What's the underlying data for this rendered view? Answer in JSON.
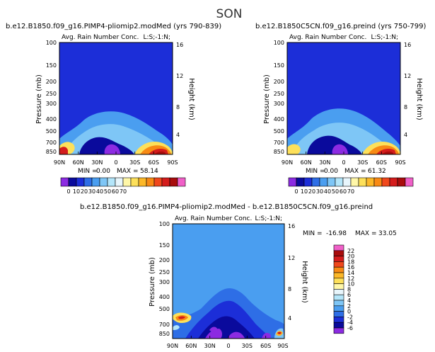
{
  "figure_title": "SON",
  "chart_data": [
    {
      "type": "heatmap",
      "title": "b.e12.B1850.f09_g16.PIMP4-pliomip2.modMed (yrs 790-839)",
      "subtitle": "Avg. Rain Number Conc.",
      "level_label": "L:S;-1:N;",
      "ylabel": "Pressure (mb)",
      "ylabel_right": "Height (km)",
      "xtick_labels": [
        "90N",
        "60N",
        "30N",
        "0",
        "30S",
        "60S",
        "90S"
      ],
      "ytick_labels": [
        "100",
        "150",
        "200",
        "250",
        "300",
        "400",
        "500",
        "700",
        "850"
      ],
      "ytick_right_labels": [
        "16",
        "12",
        "8",
        "4"
      ],
      "stats": {
        "min_label": "MIN =",
        "min": "0.00",
        "max_label": "MAX =",
        "max": "58.14"
      },
      "colorbar": {
        "orientation": "horizontal",
        "labels": [
          "0",
          "10",
          "20",
          "30",
          "40",
          "50",
          "60",
          "70"
        ],
        "colors": [
          "#8c2be2",
          "#0a0a9c",
          "#1c2ed8",
          "#2e6ee6",
          "#4a9ef0",
          "#7ec6f6",
          "#b4e6fa",
          "#e8f6fc",
          "#fff7a8",
          "#fde05a",
          "#fcb828",
          "#f88a14",
          "#f0481c",
          "#d41c1c",
          "#a80c0c",
          "#f060c8"
        ]
      }
    },
    {
      "type": "heatmap",
      "title": "b.e12.B1850C5CN.f09_g16.preind (yrs 750-799)",
      "subtitle": "Avg. Rain Number Conc.",
      "level_label": "L:S;-1:N;",
      "ylabel": "Pressure (mb)",
      "ylabel_right": "Height (km)",
      "xtick_labels": [
        "90N",
        "60N",
        "30N",
        "0",
        "30S",
        "60S",
        "90S"
      ],
      "ytick_labels": [
        "100",
        "150",
        "200",
        "250",
        "300",
        "400",
        "500",
        "700",
        "850"
      ],
      "ytick_right_labels": [
        "16",
        "12",
        "8",
        "4"
      ],
      "stats": {
        "min_label": "MIN =",
        "min": "0.00",
        "max_label": "MAX =",
        "max": "61.32"
      },
      "colorbar": {
        "orientation": "horizontal",
        "labels": [
          "0",
          "10",
          "20",
          "30",
          "40",
          "50",
          "60",
          "70"
        ],
        "colors": [
          "#8c2be2",
          "#0a0a9c",
          "#1c2ed8",
          "#2e6ee6",
          "#4a9ef0",
          "#7ec6f6",
          "#b4e6fa",
          "#e8f6fc",
          "#fff7a8",
          "#fde05a",
          "#fcb828",
          "#f88a14",
          "#f0481c",
          "#d41c1c",
          "#a80c0c",
          "#f060c8"
        ]
      }
    },
    {
      "type": "heatmap",
      "title": "b.e12.B1850.f09_g16.PIMP4-pliomip2.modMed - b.e12.B1850C5CN.f09_g16.preind",
      "subtitle": "Avg. Rain Number Conc.",
      "level_label": "L:S;-1:N;",
      "ylabel": "Pressure (mb)",
      "ylabel_right": "Height (km)",
      "xtick_labels": [
        "90N",
        "60N",
        "30N",
        "0",
        "30S",
        "60S",
        "90S"
      ],
      "ytick_labels": [
        "100",
        "150",
        "200",
        "250",
        "300",
        "400",
        "500",
        "700",
        "850"
      ],
      "ytick_right_labels": [
        "16",
        "12",
        "8",
        "4"
      ],
      "stats": {
        "min_label": "MIN =",
        "min": "-16.98",
        "max_label": "MAX =",
        "max": "33.05"
      },
      "colorbar": {
        "orientation": "vertical",
        "labels": [
          "22",
          "20",
          "18",
          "16",
          "14",
          "12",
          "10",
          "8",
          "6",
          "4",
          "2",
          "0",
          "-2",
          "-4",
          "-6"
        ],
        "colors": [
          "#f060c8",
          "#a80c0c",
          "#d41c1c",
          "#f0481c",
          "#f88a14",
          "#fcb828",
          "#fde05a",
          "#fff7a8",
          "#e8f6fc",
          "#b4e6fa",
          "#7ec6f6",
          "#4a9ef0",
          "#2e6ee6",
          "#1c2ed8",
          "#0a0a9c",
          "#8c2be2"
        ]
      }
    }
  ]
}
